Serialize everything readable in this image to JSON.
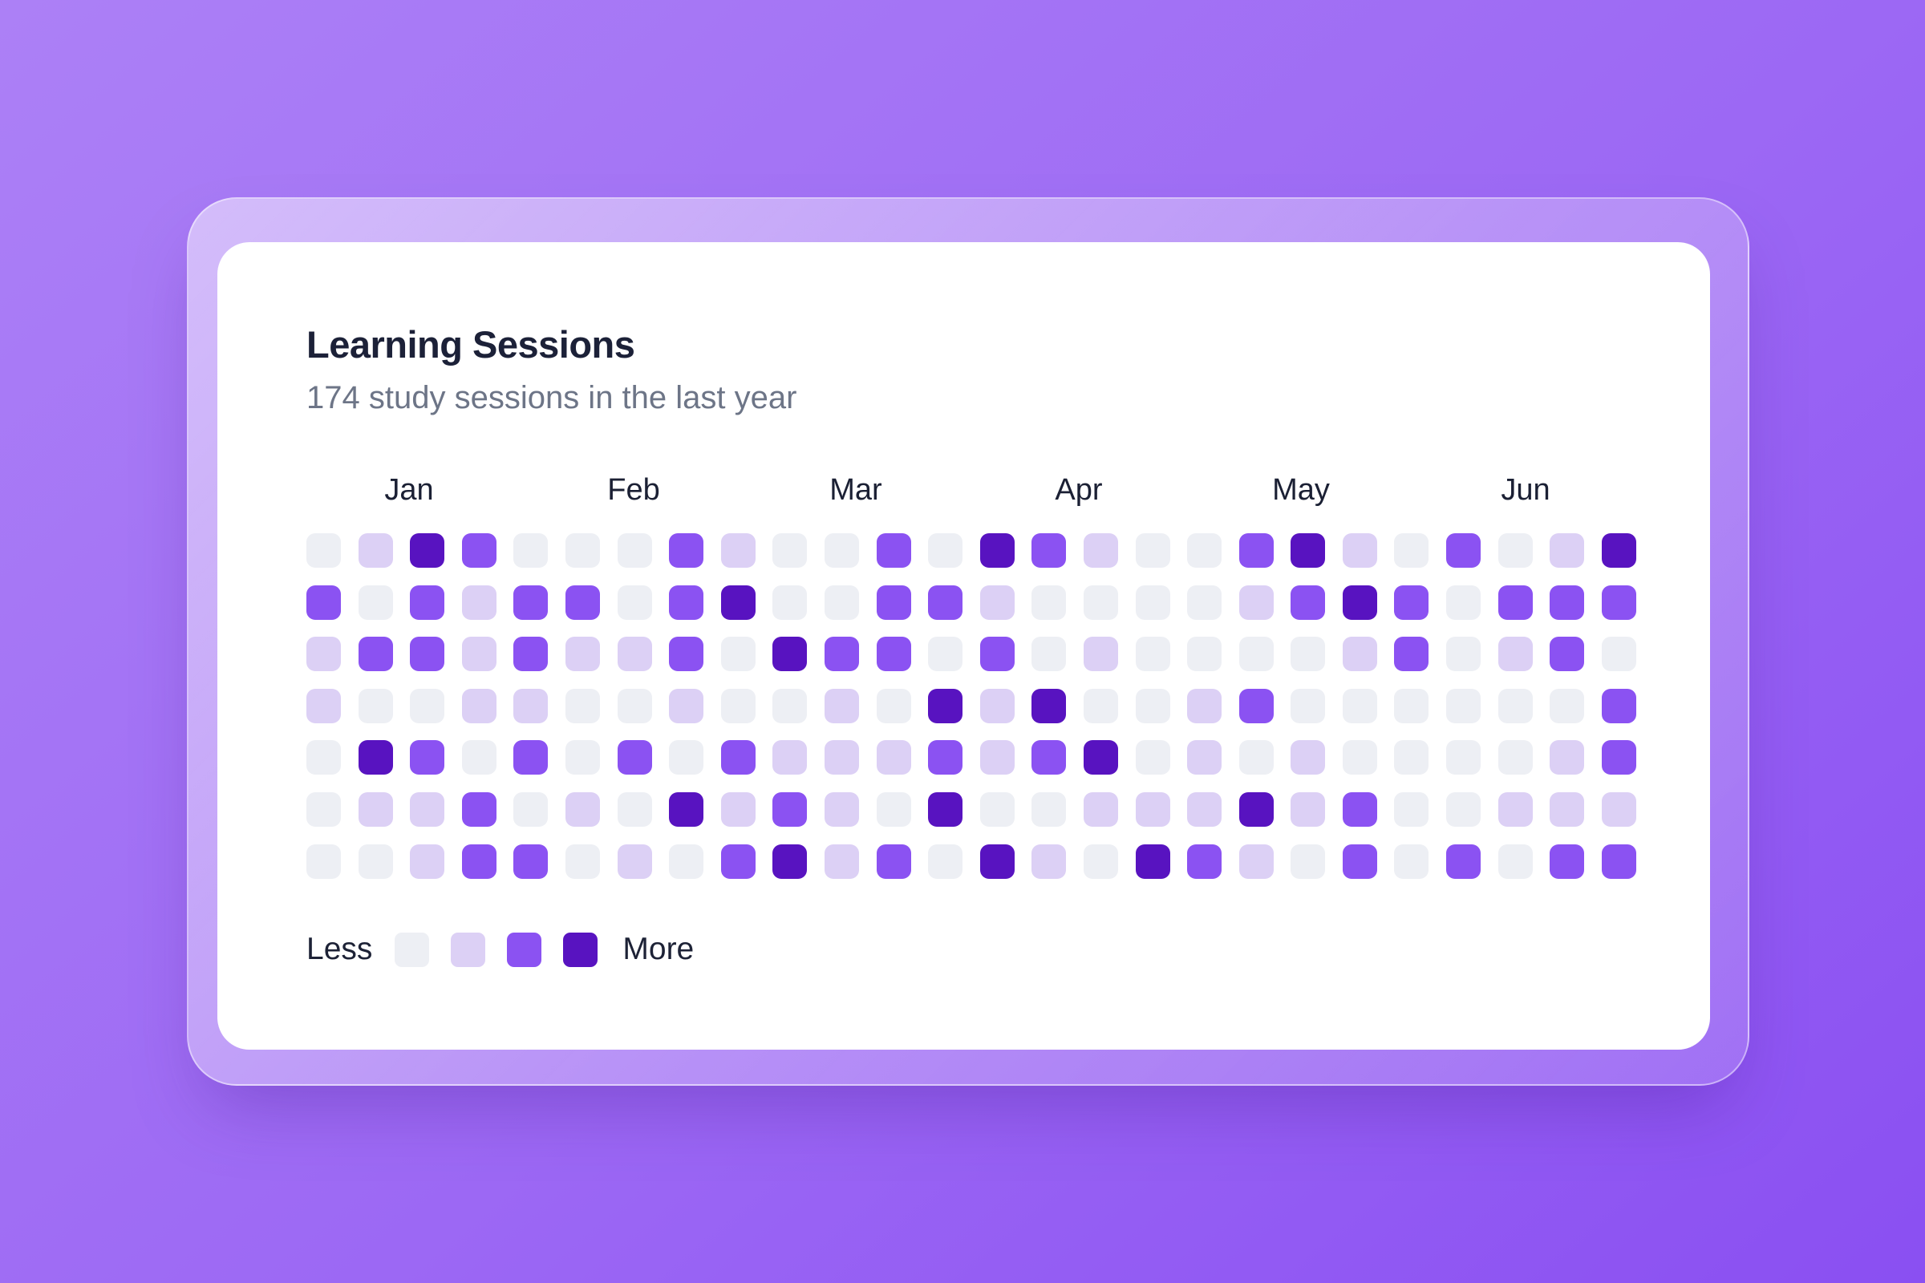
{
  "card": {
    "title": "Learning Sessions",
    "subtitle": "174 study sessions in the last year"
  },
  "months": [
    "Jan",
    "Feb",
    "Mar",
    "Apr",
    "May",
    "Jun"
  ],
  "legend": {
    "less_label": "Less",
    "more_label": "More",
    "levels": [
      0,
      1,
      2,
      3
    ]
  },
  "colors": {
    "background_start": "#ac80f6",
    "background_end": "#8a4ff2",
    "card_background": "#ffffff",
    "title_color": "#1c2138",
    "subtitle_color": "#6d7587",
    "month_label_color": "#1b2034",
    "legend_text_color": "#1d2236",
    "level0": "#edeff4",
    "level1": "#dcd0f5",
    "level2": "#8b52f2",
    "level3": "#5813c0"
  },
  "chart_data": {
    "type": "heatmap",
    "title": "Learning Sessions",
    "subtitle": "174 study sessions in the last year",
    "total_sessions": 174,
    "rows": 7,
    "cols": 26,
    "orientation": "columns are weeks, rows are weekdays",
    "months": [
      "Jan",
      "Feb",
      "Mar",
      "Apr",
      "May",
      "Jun"
    ],
    "level_scale": [
      "none",
      "low",
      "medium",
      "high"
    ],
    "legend": {
      "low_label": "Less",
      "high_label": "More"
    },
    "levels": [
      [
        0,
        1,
        3,
        2,
        0,
        0,
        0,
        2,
        1,
        0,
        0,
        2,
        0,
        3,
        2,
        1,
        0,
        0,
        2,
        3,
        1,
        0,
        2,
        0,
        1,
        3
      ],
      [
        2,
        0,
        2,
        1,
        2,
        2,
        0,
        2,
        3,
        0,
        0,
        2,
        2,
        1,
        0,
        0,
        0,
        0,
        1,
        2,
        3,
        2,
        0,
        2,
        2,
        2
      ],
      [
        1,
        2,
        2,
        1,
        2,
        1,
        1,
        2,
        0,
        3,
        2,
        2,
        0,
        2,
        0,
        1,
        0,
        0,
        0,
        0,
        1,
        2,
        0,
        1,
        2,
        0
      ],
      [
        1,
        0,
        0,
        1,
        1,
        0,
        0,
        1,
        0,
        0,
        1,
        0,
        3,
        1,
        3,
        0,
        0,
        1,
        2,
        0,
        0,
        0,
        0,
        0,
        0,
        2
      ],
      [
        0,
        3,
        2,
        0,
        2,
        0,
        2,
        0,
        2,
        1,
        1,
        1,
        2,
        1,
        2,
        3,
        0,
        1,
        0,
        1,
        0,
        0,
        0,
        0,
        1,
        2
      ],
      [
        0,
        1,
        1,
        2,
        0,
        1,
        0,
        3,
        1,
        2,
        1,
        0,
        3,
        0,
        0,
        1,
        1,
        1,
        3,
        1,
        2,
        0,
        0,
        1,
        1,
        1
      ],
      [
        0,
        0,
        1,
        2,
        2,
        0,
        1,
        0,
        2,
        3,
        1,
        2,
        0,
        3,
        1,
        0,
        3,
        2,
        1,
        0,
        2,
        0,
        2,
        0,
        2,
        2
      ]
    ]
  }
}
